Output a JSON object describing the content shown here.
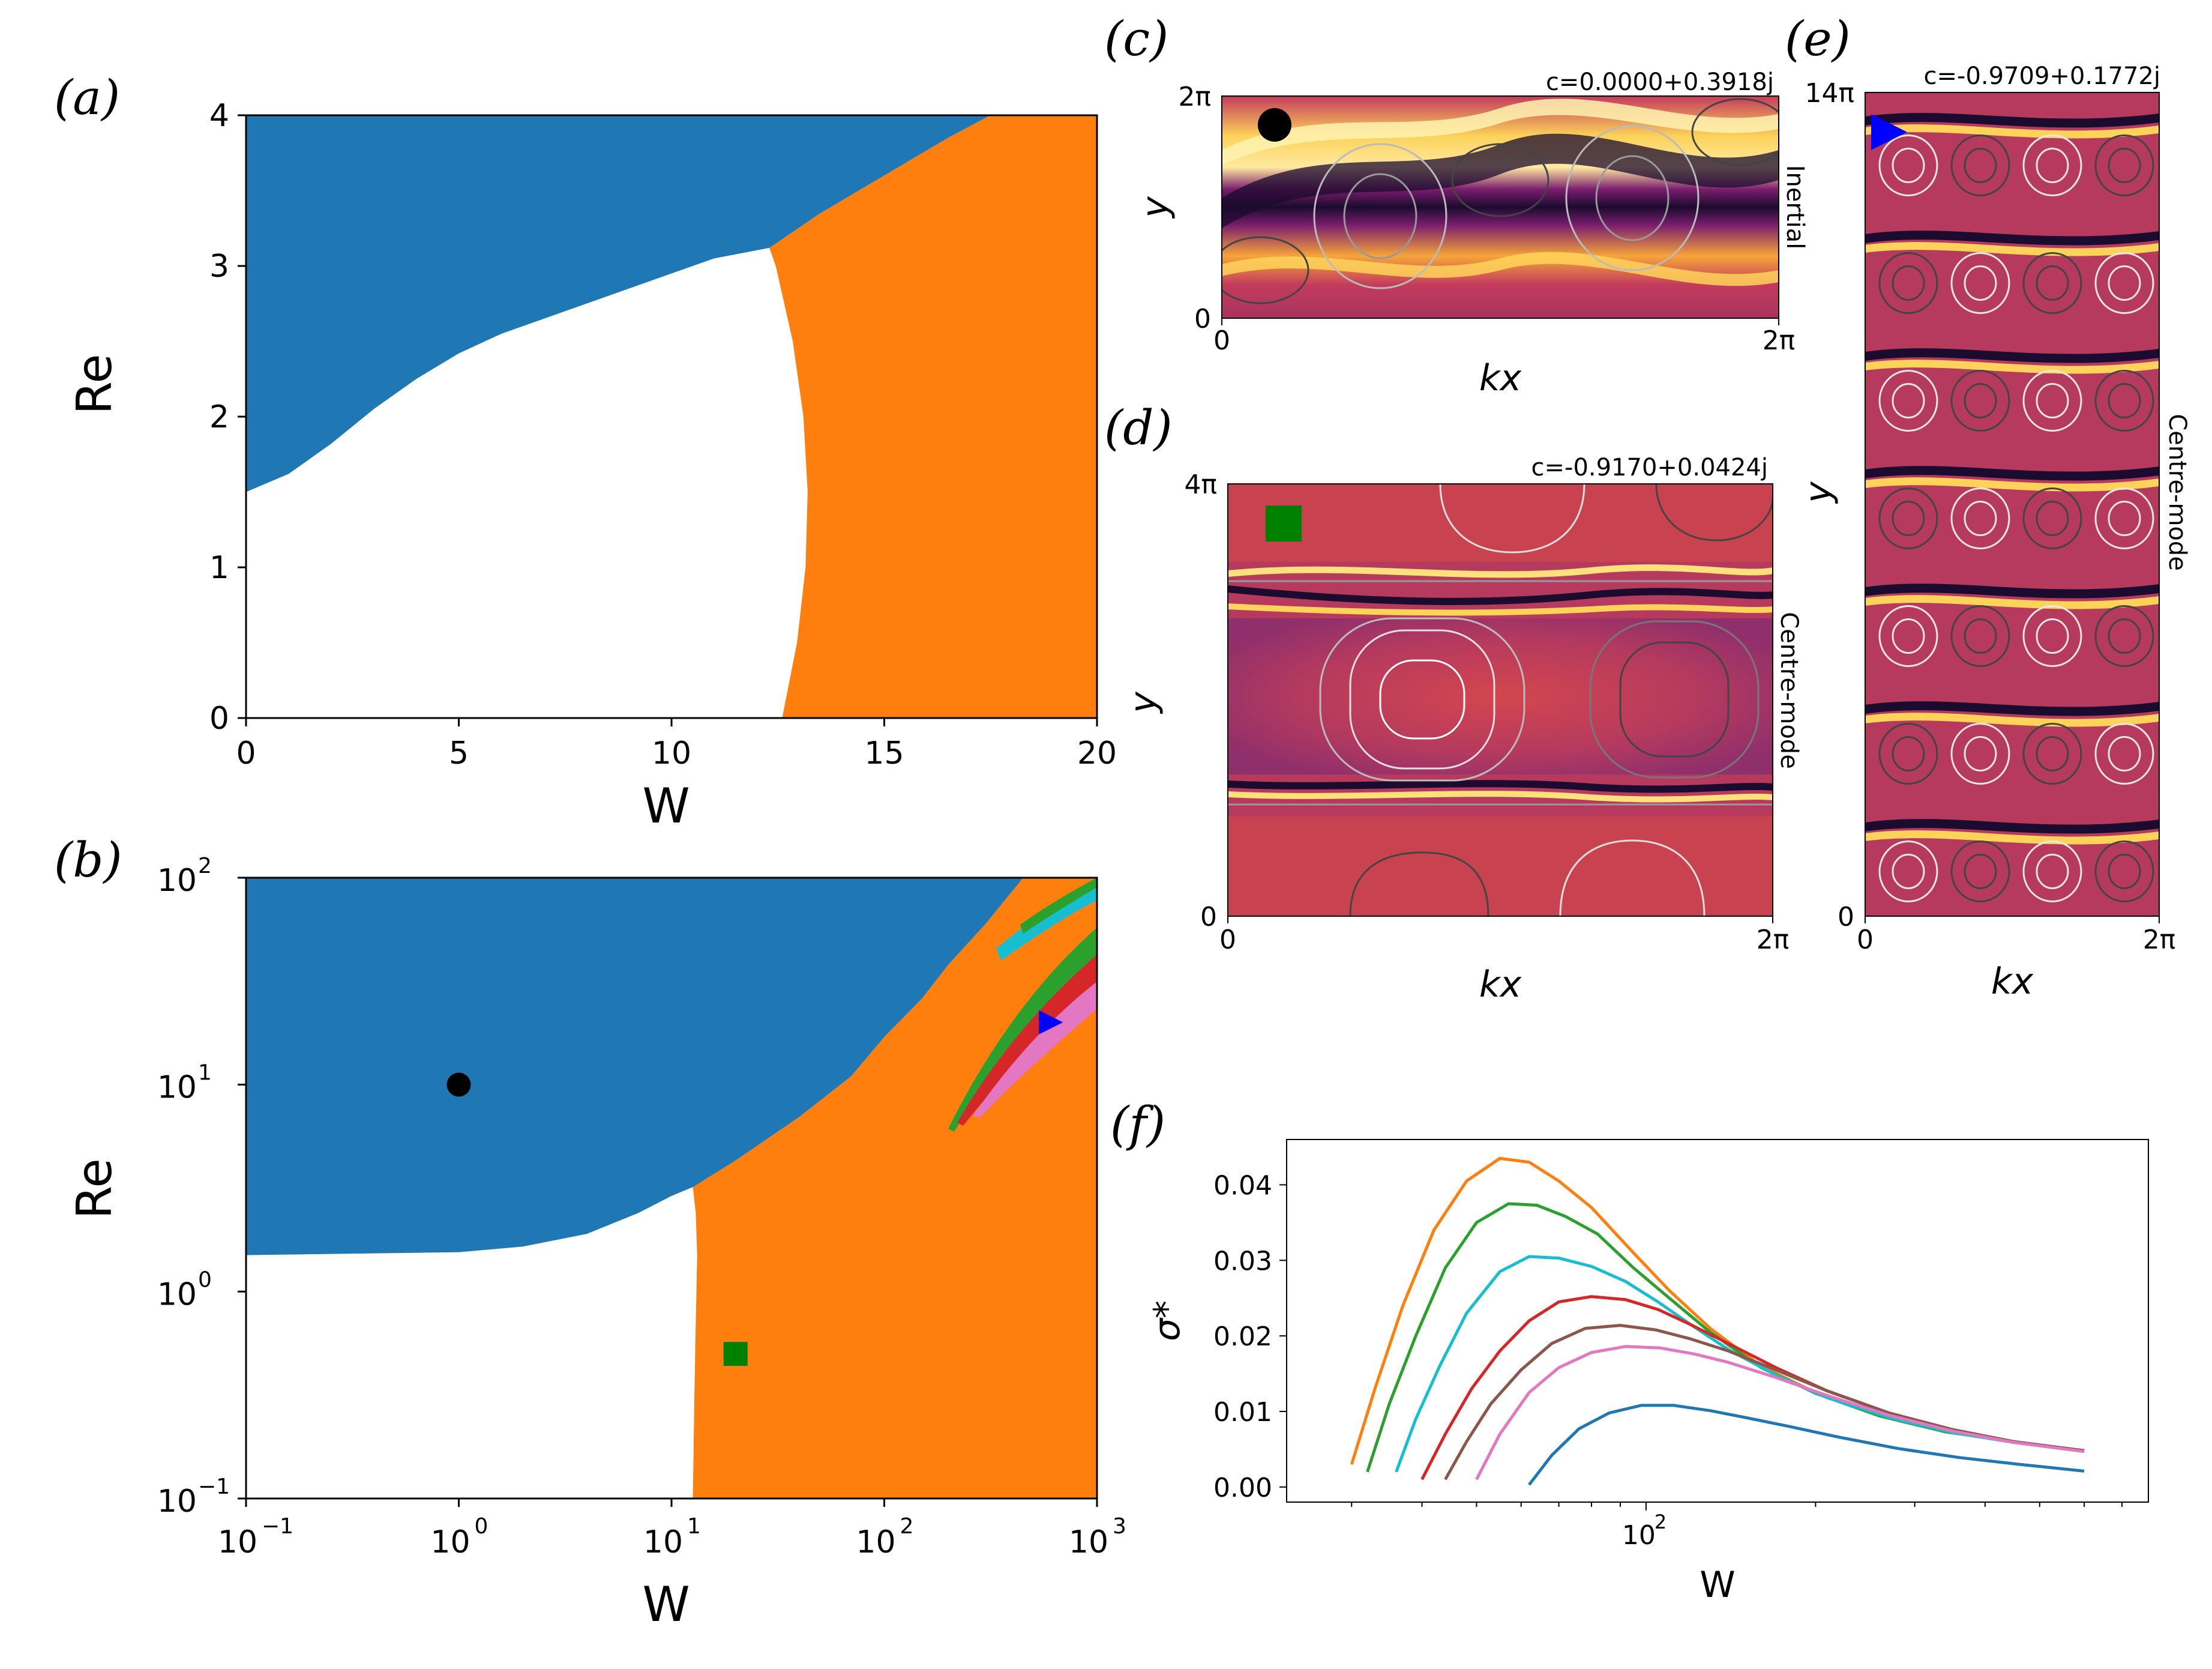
{
  "colors": {
    "blue": "#1f77b4",
    "orange": "#ff7f0e",
    "green": "#2ca02c",
    "red": "#d62728",
    "brown": "#8c564b",
    "pink": "#e377c2",
    "cyan": "#17becf",
    "black": "#000000",
    "dark_green": "#008000",
    "marker_blue": "#0000ff"
  },
  "chart_data": [
    {
      "id": "a",
      "type": "heatmap",
      "panel_label": "(a)",
      "xlabel": "W",
      "ylabel": "Re",
      "xlim": [
        0,
        20
      ],
      "ylim": [
        0,
        4
      ],
      "xticks": [
        0,
        5,
        10,
        15,
        20
      ],
      "yticks": [
        0,
        1,
        2,
        3,
        4
      ],
      "xtick_labels": [
        "0",
        "5",
        "10",
        "15",
        "20"
      ],
      "ytick_labels": [
        "0",
        "1",
        "2",
        "3",
        "4"
      ],
      "regions": [
        {
          "color": "blue",
          "boundary_W": [
            0,
            1,
            2,
            3,
            4,
            5,
            6,
            7,
            8,
            9,
            10,
            11,
            12.3,
            13.5,
            15,
            16.5,
            17.5
          ],
          "boundary_Re": [
            1.5,
            1.62,
            1.82,
            2.05,
            2.25,
            2.42,
            2.55,
            2.65,
            2.75,
            2.85,
            2.95,
            3.05,
            3.12,
            3.35,
            3.6,
            3.85,
            4.0
          ]
        },
        {
          "color": "orange",
          "boundary_Re": [
            0,
            0.5,
            1,
            1.5,
            2,
            2.5,
            3,
            3.12,
            3.35,
            3.6,
            3.85,
            4.0
          ],
          "boundary_W": [
            12.6,
            12.95,
            13.15,
            13.2,
            13.1,
            12.85,
            12.45,
            12.3,
            13.5,
            15,
            16.5,
            17.5
          ]
        }
      ]
    },
    {
      "id": "b",
      "type": "heatmap",
      "panel_label": "(b)",
      "xlabel": "W",
      "ylabel": "Re",
      "xscale": "log",
      "yscale": "log",
      "xlim": [
        0.1,
        1000
      ],
      "ylim": [
        0.1,
        100
      ],
      "xticks": [
        0.1,
        1,
        10,
        100,
        1000
      ],
      "yticks": [
        0.1,
        1,
        10,
        100
      ],
      "xtick_base": [
        "10",
        "10",
        "10",
        "10",
        "10"
      ],
      "xtick_exp": [
        "−1",
        "0",
        "1",
        "2",
        "3"
      ],
      "ytick_base": [
        "10",
        "10",
        "10",
        "10"
      ],
      "ytick_exp": [
        "−1",
        "0",
        "1",
        "2"
      ],
      "regions": [
        {
          "color": "blue",
          "boundary_W": [
            0.1,
            1,
            2,
            4,
            7,
            10,
            12.6,
            20,
            40,
            70,
            100,
            150,
            200,
            300,
            450
          ],
          "boundary_Re": [
            1.5,
            1.55,
            1.65,
            1.9,
            2.4,
            2.9,
            3.2,
            4.3,
            7,
            11,
            17,
            26,
            38,
            60,
            100
          ]
        },
        {
          "color": "orange",
          "boundary_W": [
            12.6,
            12.8,
            13.0,
            13.1,
            13.2,
            13.0,
            12.6
          ],
          "boundary_Re": [
            0.1,
            0.3,
            0.7,
            1.0,
            1.5,
            2.4,
            3.2
          ]
        }
      ],
      "markers": [
        {
          "shape": "circle",
          "color": "black",
          "W": 1.0,
          "Re": 10.0
        },
        {
          "shape": "square",
          "color": "dark_green",
          "W": 20.0,
          "Re": 0.5
        },
        {
          "shape": "triangle-right",
          "color": "marker_blue",
          "W": 600.0,
          "Re": 20.0
        }
      ]
    },
    {
      "id": "c",
      "type": "heatmap",
      "panel_label": "(c)",
      "title": "c=0.0000+0.3918j",
      "side_label": "Inertial",
      "xlabel": "kx",
      "ylabel": "y",
      "xtick_labels": [
        "0",
        "2π"
      ],
      "ytick_labels": [
        "0",
        "2π"
      ],
      "marker": {
        "shape": "circle",
        "color": "black"
      }
    },
    {
      "id": "d",
      "type": "heatmap",
      "panel_label": "(d)",
      "title": "c=-0.9170+0.0424j",
      "side_label": "Centre-mode",
      "xlabel": "kx",
      "ylabel": "y",
      "xtick_labels": [
        "0",
        "2π"
      ],
      "ytick_labels": [
        "0",
        "4π"
      ],
      "marker": {
        "shape": "square",
        "color": "dark_green"
      }
    },
    {
      "id": "e",
      "type": "heatmap",
      "panel_label": "(e)",
      "title": "c=-0.9709+0.1772j",
      "side_label": "Centre-mode",
      "xlabel": "kx",
      "ylabel": "y",
      "xtick_labels": [
        "0",
        "2π"
      ],
      "ytick_labels": [
        "0",
        "14π"
      ],
      "marker": {
        "shape": "triangle-right",
        "color": "marker_blue"
      }
    },
    {
      "id": "f",
      "type": "line",
      "panel_label": "(f)",
      "xlabel": "W",
      "ylabel": "σ*",
      "xscale": "log",
      "xlim": [
        23,
        780
      ],
      "ylim": [
        -0.002,
        0.046
      ],
      "yticks": [
        0.0,
        0.01,
        0.02,
        0.03,
        0.04
      ],
      "ytick_labels": [
        "0.00",
        "0.01",
        "0.02",
        "0.03",
        "0.04"
      ],
      "xtick_label": "10",
      "xtick_label_exp": "2",
      "series": [
        {
          "color": "orange",
          "W": [
            30,
            33,
            37,
            42,
            48,
            55,
            62,
            70,
            80,
            95,
            110,
            130,
            160,
            200,
            260,
            340,
            450,
            600
          ],
          "sigma": [
            0.003,
            0.013,
            0.024,
            0.034,
            0.0405,
            0.0435,
            0.043,
            0.0405,
            0.037,
            0.031,
            0.026,
            0.021,
            0.016,
            0.0125,
            0.0095,
            0.0074,
            0.006,
            0.0048
          ]
        },
        {
          "color": "green",
          "W": [
            32,
            35,
            39,
            44,
            50,
            57,
            64,
            72,
            82,
            95,
            110,
            130,
            160,
            200,
            260,
            340,
            450,
            600
          ],
          "sigma": [
            0.002,
            0.011,
            0.02,
            0.029,
            0.035,
            0.0375,
            0.0373,
            0.0358,
            0.0335,
            0.029,
            0.025,
            0.0205,
            0.0158,
            0.0124,
            0.0094,
            0.0073,
            0.006,
            0.0048
          ]
        },
        {
          "color": "cyan",
          "W": [
            36,
            39,
            43,
            48,
            55,
            62,
            70,
            80,
            92,
            105,
            120,
            140,
            170,
            210,
            270,
            350,
            450,
            600
          ],
          "sigma": [
            0.002,
            0.009,
            0.016,
            0.023,
            0.0285,
            0.0305,
            0.0303,
            0.0292,
            0.0272,
            0.0245,
            0.0215,
            0.0182,
            0.0148,
            0.0118,
            0.0092,
            0.0072,
            0.0059,
            0.0047
          ]
        },
        {
          "color": "red",
          "W": [
            40,
            44,
            49,
            55,
            62,
            70,
            80,
            92,
            105,
            120,
            140,
            170,
            210,
            270,
            350,
            450,
            600
          ],
          "sigma": [
            0.001,
            0.007,
            0.013,
            0.018,
            0.022,
            0.0245,
            0.0252,
            0.0248,
            0.0235,
            0.0215,
            0.019,
            0.0158,
            0.0127,
            0.0098,
            0.0076,
            0.006,
            0.0048
          ]
        },
        {
          "color": "brown",
          "W": [
            44,
            48,
            53,
            60,
            68,
            78,
            90,
            104,
            120,
            140,
            170,
            210,
            270,
            350,
            450,
            600
          ],
          "sigma": [
            0.001,
            0.006,
            0.011,
            0.0155,
            0.019,
            0.021,
            0.0214,
            0.0208,
            0.0196,
            0.018,
            0.0155,
            0.0127,
            0.0098,
            0.0076,
            0.006,
            0.0048
          ]
        },
        {
          "color": "pink",
          "W": [
            50,
            55,
            62,
            70,
            80,
            92,
            106,
            122,
            140,
            170,
            210,
            270,
            350,
            450,
            600
          ],
          "sigma": [
            0.001,
            0.007,
            0.0125,
            0.0158,
            0.0178,
            0.0186,
            0.0184,
            0.0176,
            0.0165,
            0.0145,
            0.0121,
            0.0095,
            0.0074,
            0.0059,
            0.0047
          ]
        },
        {
          "color": "blue",
          "W": [
            62,
            68,
            76,
            86,
            98,
            112,
            130,
            150,
            180,
            220,
            280,
            360,
            460,
            600
          ],
          "sigma": [
            0.0003,
            0.0042,
            0.0077,
            0.0098,
            0.0108,
            0.0108,
            0.0101,
            0.0092,
            0.008,
            0.0066,
            0.0051,
            0.0039,
            0.003,
            0.0021
          ]
        }
      ]
    }
  ]
}
